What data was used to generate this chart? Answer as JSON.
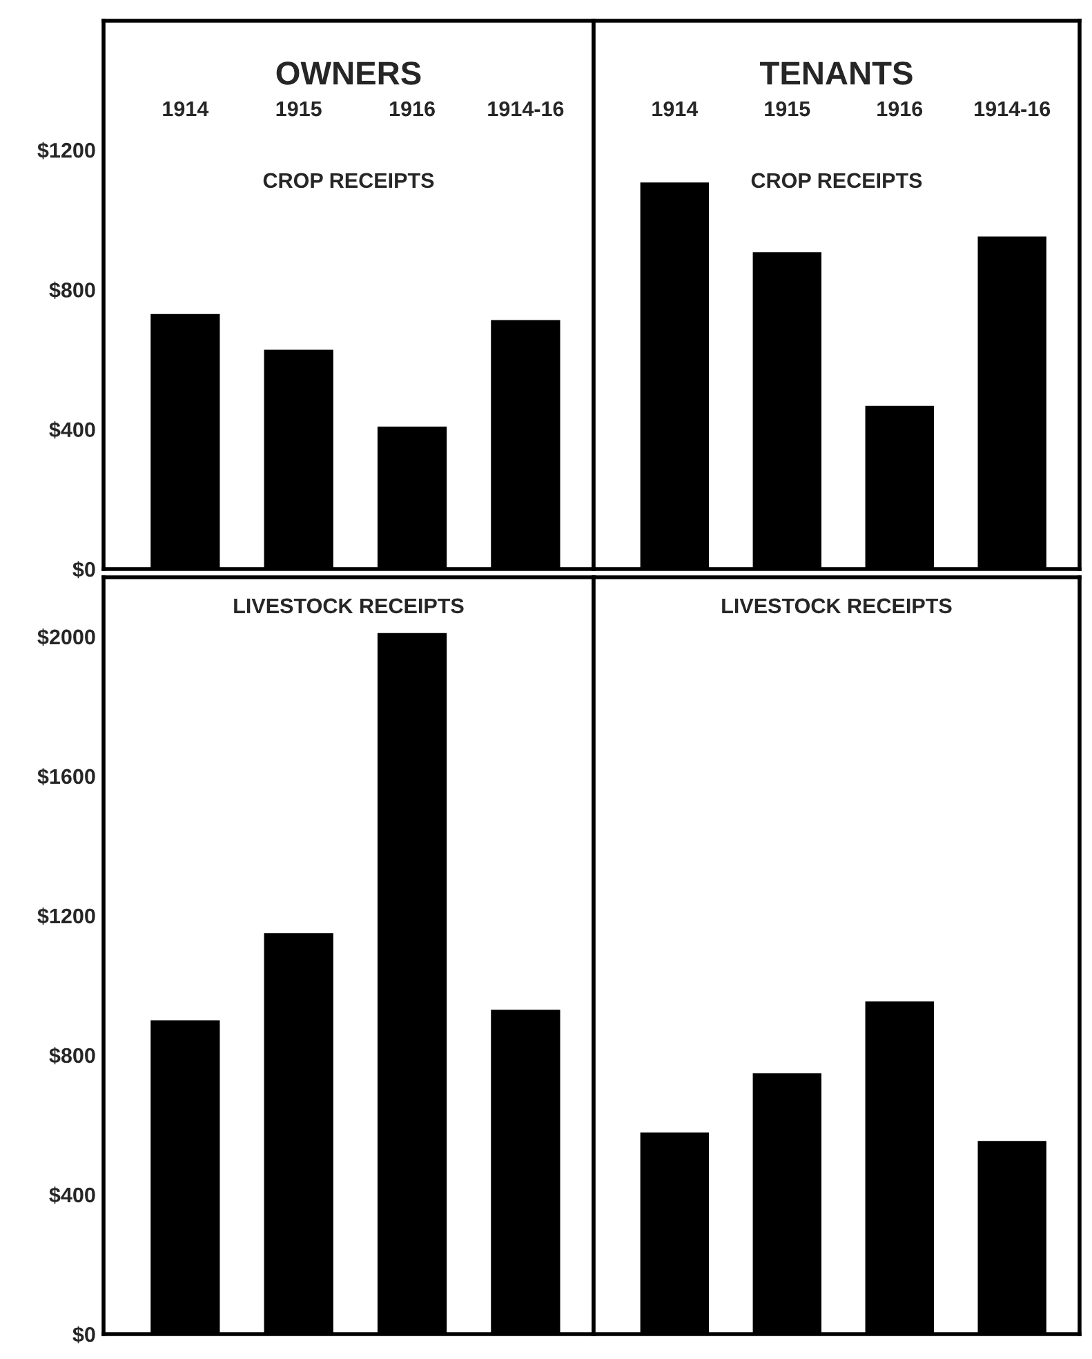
{
  "chart_data": [
    {
      "type": "bar",
      "title": "OWNERS",
      "subtitle": "CROP RECEIPTS",
      "categories": [
        "1914",
        "1915",
        "1916",
        "1914-16"
      ],
      "values": [
        730,
        628,
        408,
        713
      ],
      "color": "#000000",
      "ylim": [
        0,
        1570
      ],
      "yticks": [
        {
          "value": 0,
          "label": "$0"
        },
        {
          "value": 400,
          "label": "$400"
        },
        {
          "value": 800,
          "label": "$800"
        },
        {
          "value": 1200,
          "label": "$1200"
        }
      ],
      "grid": false
    },
    {
      "type": "bar",
      "title": "TENANTS",
      "subtitle": "CROP RECEIPTS",
      "categories": [
        "1914",
        "1915",
        "1916",
        "1914-16"
      ],
      "values": [
        1107,
        907,
        467,
        952
      ],
      "color": "#000000",
      "ylim": [
        0,
        1570
      ],
      "tick_labels": "x",
      "grid": false
    },
    {
      "type": "bar",
      "title": "LIVESTOCK RECEIPTS",
      "categories": [
        "1914",
        "1915",
        "1916",
        "1914-16"
      ],
      "values": [
        900,
        1150,
        2010,
        930
      ],
      "color": "#000000",
      "ylim": [
        0,
        2170
      ],
      "yticks": [
        {
          "value": 0,
          "label": "$0"
        },
        {
          "value": 400,
          "label": "$400"
        },
        {
          "value": 800,
          "label": "$800"
        },
        {
          "value": 1200,
          "label": "$1200"
        },
        {
          "value": 1600,
          "label": "$1600"
        },
        {
          "value": 2000,
          "label": "$2000"
        }
      ],
      "tick_labels": "y",
      "grid": false
    },
    {
      "type": "bar",
      "title": "LIVESTOCK RECEIPTS",
      "categories": [
        "1914",
        "1915",
        "1916",
        "1914-16"
      ],
      "values": [
        578,
        748,
        954,
        554
      ],
      "color": "#000000",
      "ylim": [
        0,
        2170
      ],
      "tick_labels": false,
      "grid": false
    }
  ]
}
